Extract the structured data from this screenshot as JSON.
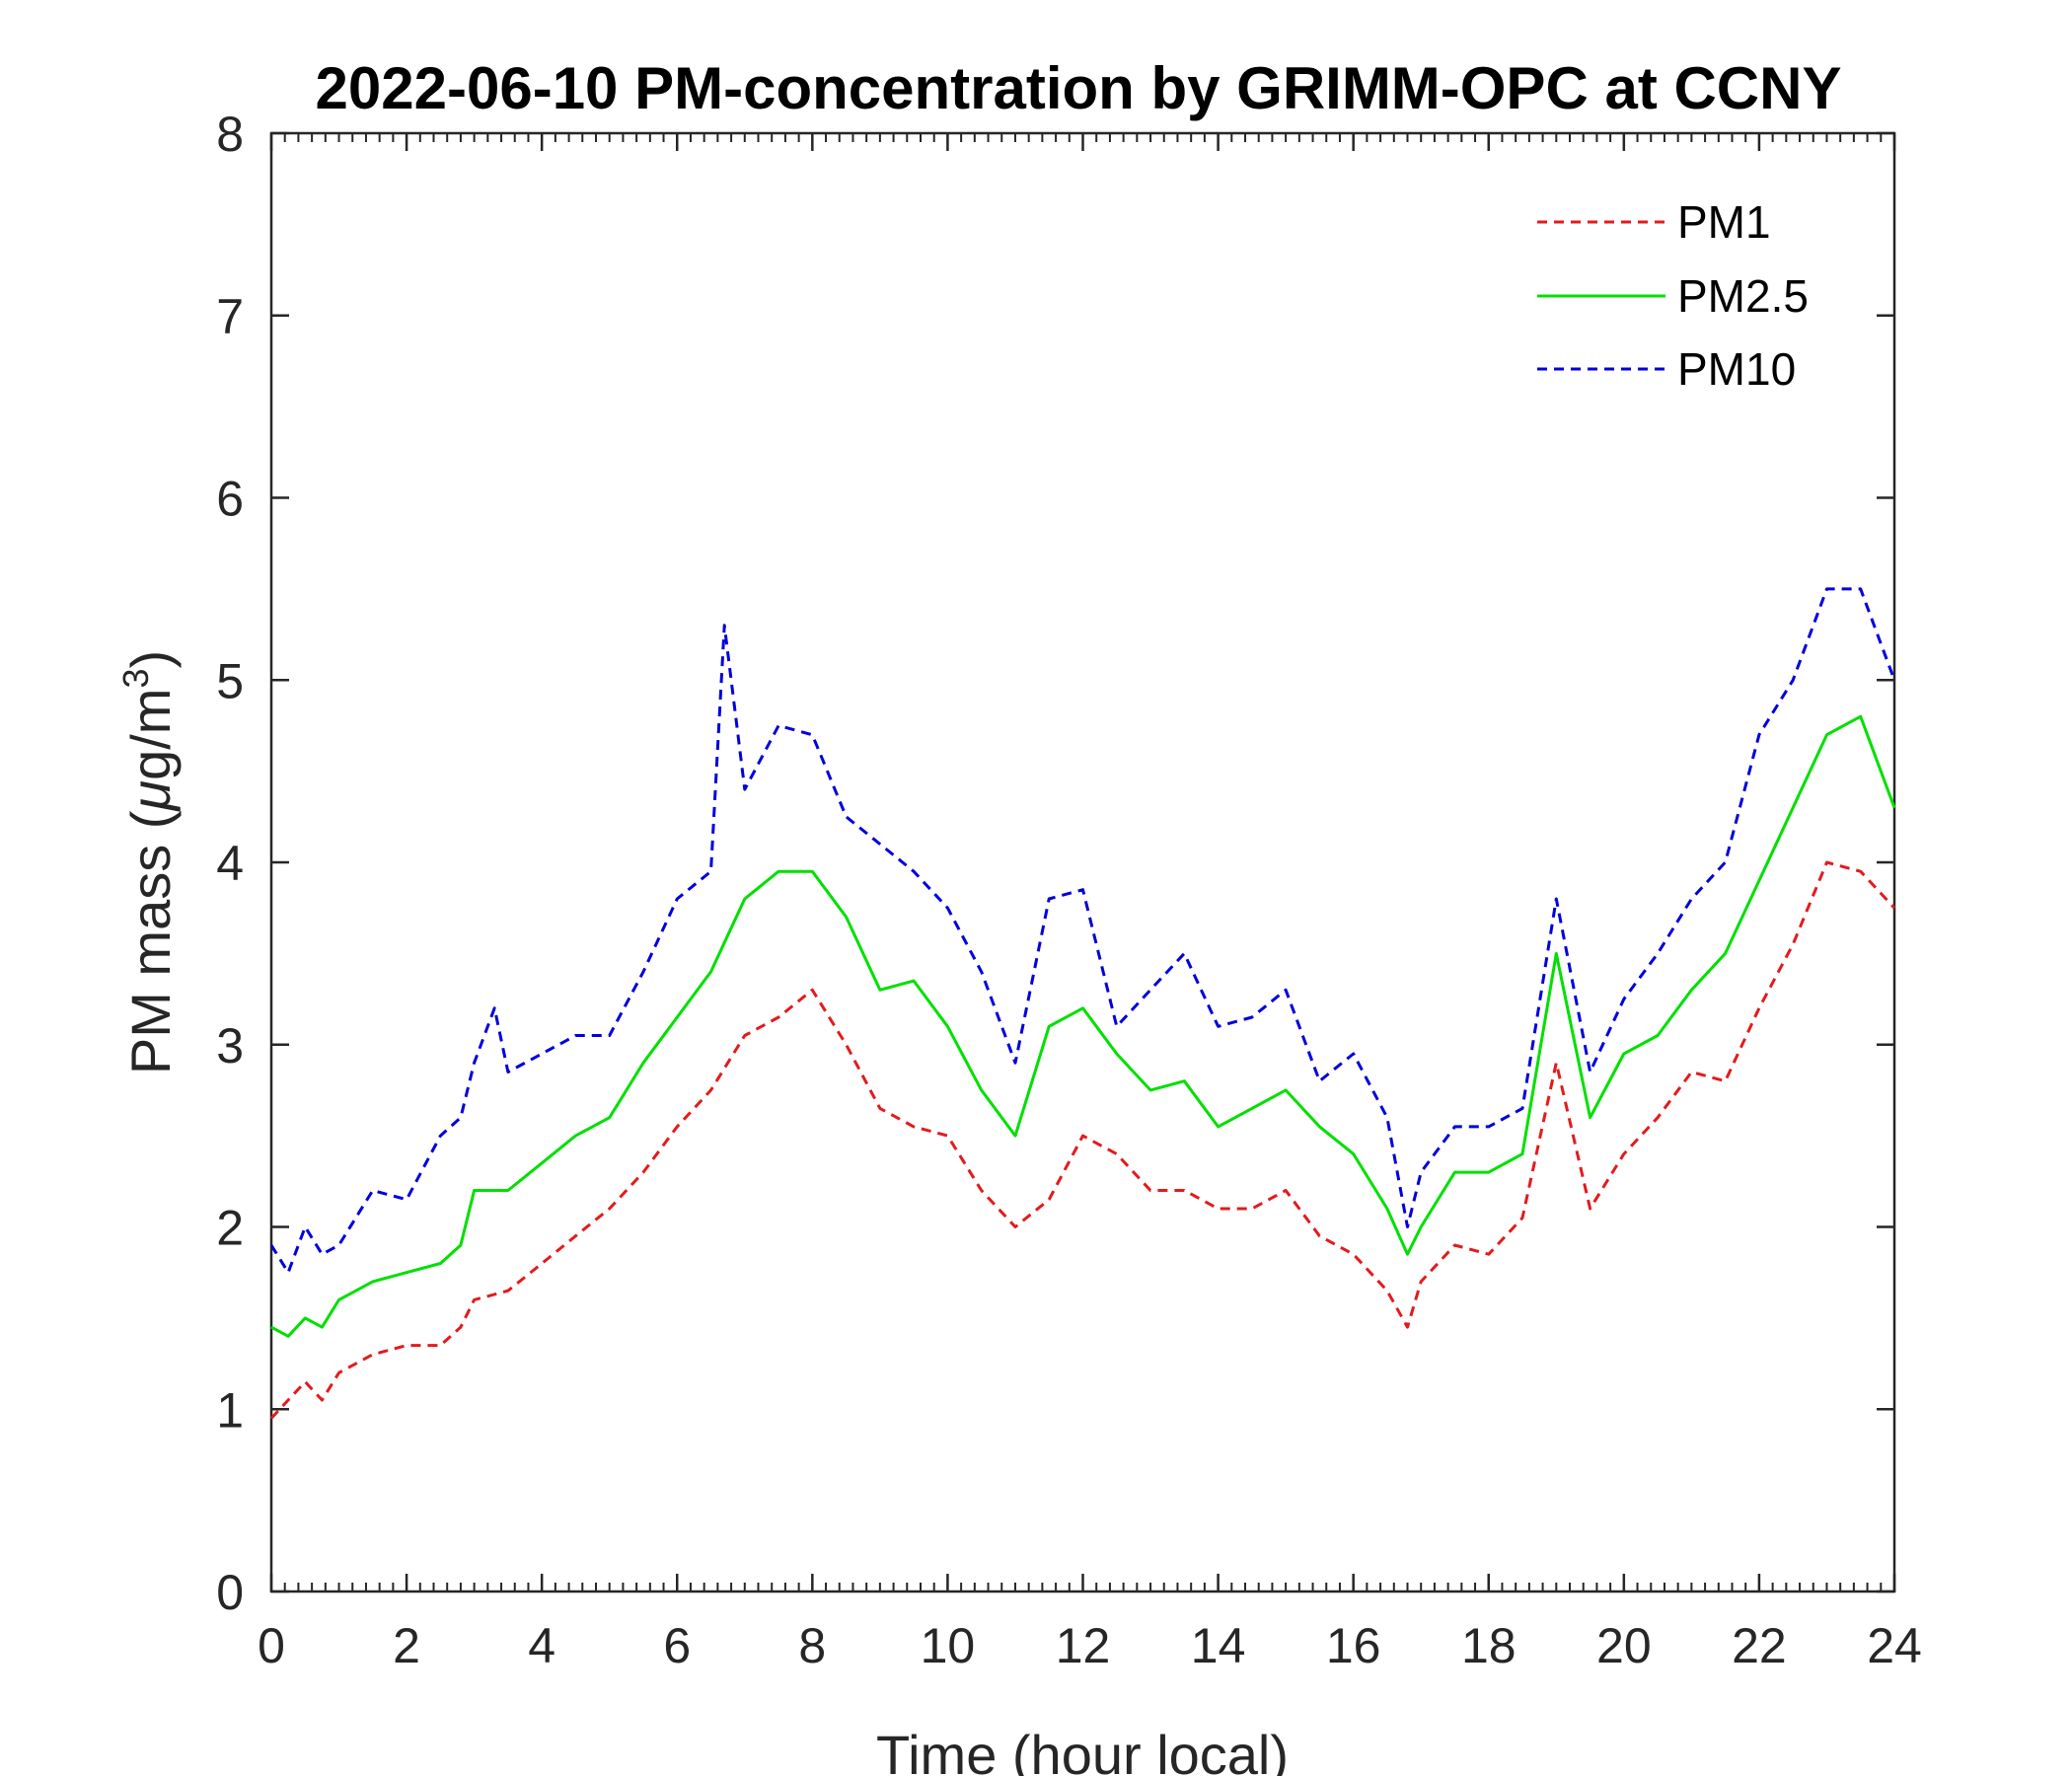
{
  "chart_data": {
    "type": "line",
    "title": "2022-06-10 PM-concentration by GRIMM-OPC at CCNY",
    "xlabel": "Time (hour local)",
    "ylabel_prefix": "PM mass (",
    "ylabel_mu": "μ",
    "ylabel_units": "g/m",
    "ylabel_sup": "3",
    "ylabel_suffix": ")",
    "xlim": [
      0,
      24
    ],
    "ylim": [
      0,
      8
    ],
    "xticks": [
      0,
      2,
      4,
      6,
      8,
      10,
      12,
      14,
      16,
      18,
      20,
      22,
      24
    ],
    "yticks": [
      0,
      1,
      2,
      3,
      4,
      5,
      6,
      7,
      8
    ],
    "grid": false,
    "legend_position": "top-right",
    "series": [
      {
        "name": "PM1",
        "color": "#e41a1c",
        "style": "dashed",
        "x": [
          0,
          0.25,
          0.5,
          0.75,
          1,
          1.5,
          2,
          2.5,
          2.8,
          3,
          3.5,
          4,
          4.5,
          5,
          5.5,
          6,
          6.5,
          7,
          7.5,
          8,
          8.5,
          9,
          9.5,
          10,
          10.5,
          11,
          11.5,
          12,
          12.5,
          13,
          13.5,
          14,
          14.5,
          15,
          15.5,
          16,
          16.5,
          16.8,
          17,
          17.5,
          18,
          18.5,
          19,
          19.5,
          20,
          20.5,
          21,
          21.5,
          22,
          22.5,
          23,
          23.5,
          24
        ],
        "values": [
          0.95,
          1.05,
          1.15,
          1.05,
          1.2,
          1.3,
          1.35,
          1.35,
          1.45,
          1.6,
          1.65,
          1.8,
          1.95,
          2.1,
          2.3,
          2.55,
          2.75,
          3.05,
          3.15,
          3.3,
          3.0,
          2.65,
          2.55,
          2.5,
          2.2,
          2.0,
          2.15,
          2.5,
          2.4,
          2.2,
          2.2,
          2.1,
          2.1,
          2.2,
          1.95,
          1.85,
          1.65,
          1.45,
          1.7,
          1.9,
          1.85,
          2.05,
          2.9,
          2.1,
          2.4,
          2.6,
          2.85,
          2.8,
          3.2,
          3.55,
          4.0,
          3.95,
          3.75
        ]
      },
      {
        "name": "PM2.5",
        "color": "#00e000",
        "style": "solid",
        "x": [
          0,
          0.25,
          0.5,
          0.75,
          1,
          1.5,
          2,
          2.5,
          2.8,
          3,
          3.5,
          4,
          4.5,
          5,
          5.5,
          6,
          6.5,
          7,
          7.5,
          8,
          8.5,
          9,
          9.5,
          10,
          10.5,
          11,
          11.5,
          12,
          12.5,
          13,
          13.5,
          14,
          14.5,
          15,
          15.5,
          16,
          16.5,
          16.8,
          17,
          17.5,
          18,
          18.5,
          19,
          19.5,
          20,
          20.5,
          21,
          21.5,
          22,
          22.5,
          23,
          23.5,
          24
        ],
        "values": [
          1.45,
          1.4,
          1.5,
          1.45,
          1.6,
          1.7,
          1.75,
          1.8,
          1.9,
          2.2,
          2.2,
          2.35,
          2.5,
          2.6,
          2.9,
          3.15,
          3.4,
          3.8,
          3.95,
          3.95,
          3.7,
          3.3,
          3.35,
          3.1,
          2.75,
          2.5,
          3.1,
          3.2,
          2.95,
          2.75,
          2.8,
          2.55,
          2.65,
          2.75,
          2.55,
          2.4,
          2.1,
          1.85,
          2.0,
          2.3,
          2.3,
          2.4,
          3.5,
          2.6,
          2.95,
          3.05,
          3.3,
          3.5,
          3.9,
          4.3,
          4.7,
          4.8,
          4.3
        ]
      },
      {
        "name": "PM10",
        "color": "#0000dd",
        "style": "dashed",
        "x": [
          0,
          0.25,
          0.5,
          0.75,
          1,
          1.5,
          2,
          2.5,
          2.8,
          3,
          3.3,
          3.5,
          4,
          4.5,
          5,
          5.5,
          6,
          6.5,
          6.7,
          7,
          7.5,
          8,
          8.5,
          9,
          9.5,
          10,
          10.5,
          11,
          11.5,
          12,
          12.5,
          13,
          13.5,
          14,
          14.5,
          15,
          15.5,
          16,
          16.5,
          16.8,
          17,
          17.5,
          18,
          18.5,
          19,
          19.5,
          20,
          20.5,
          21,
          21.5,
          22,
          22.5,
          23,
          23.5,
          24
        ],
        "values": [
          1.9,
          1.75,
          2.0,
          1.85,
          1.9,
          2.2,
          2.15,
          2.5,
          2.6,
          2.9,
          3.2,
          2.85,
          2.95,
          3.05,
          3.05,
          3.4,
          3.8,
          3.95,
          5.3,
          4.4,
          4.75,
          4.7,
          4.25,
          4.1,
          3.95,
          3.75,
          3.4,
          2.9,
          3.8,
          3.85,
          3.1,
          3.3,
          3.5,
          3.1,
          3.15,
          3.3,
          2.8,
          2.95,
          2.6,
          2.0,
          2.3,
          2.55,
          2.55,
          2.65,
          3.8,
          2.85,
          3.25,
          3.5,
          3.8,
          4.0,
          4.7,
          5.0,
          5.5,
          5.5,
          5.0
        ]
      }
    ]
  }
}
